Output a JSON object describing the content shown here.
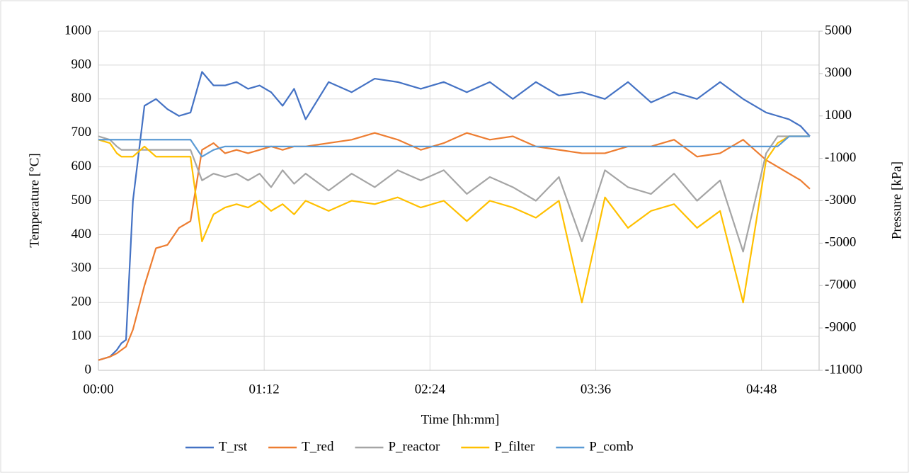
{
  "chart_data": {
    "type": "line",
    "x_label": "Time [hh:mm]",
    "y_label": "Temperature [°C]",
    "y2_label": "Pressure [kPa]",
    "xlim": [
      0,
      313
    ],
    "xticks": [
      {
        "value": 0,
        "label": "00:00"
      },
      {
        "value": 72,
        "label": "01:12"
      },
      {
        "value": 144,
        "label": "02:24"
      },
      {
        "value": 216,
        "label": "03:36"
      },
      {
        "value": 288,
        "label": "04:48"
      }
    ],
    "ylim": [
      0,
      1000
    ],
    "yticks": [
      0,
      100,
      200,
      300,
      400,
      500,
      600,
      700,
      800,
      900,
      1000
    ],
    "y2lim": [
      -11000,
      5000
    ],
    "y2ticks": [
      -11000,
      -9000,
      -7000,
      -5000,
      -3000,
      -1000,
      1000,
      3000,
      5000
    ],
    "grid": true,
    "legend": "bottom",
    "x": [
      0,
      5,
      8,
      10,
      12,
      15,
      20,
      25,
      30,
      35,
      40,
      45,
      50,
      55,
      60,
      65,
      70,
      75,
      80,
      85,
      90,
      100,
      110,
      120,
      130,
      140,
      150,
      160,
      170,
      180,
      190,
      200,
      210,
      220,
      230,
      240,
      250,
      260,
      270,
      280,
      290,
      295,
      300,
      305,
      309
    ],
    "series": [
      {
        "name": "T_rst",
        "color": "#4472c4",
        "values": [
          30,
          40,
          60,
          80,
          90,
          500,
          780,
          800,
          770,
          750,
          760,
          880,
          840,
          840,
          850,
          830,
          840,
          820,
          780,
          830,
          740,
          850,
          820,
          860,
          850,
          830,
          850,
          820,
          850,
          800,
          850,
          810,
          820,
          800,
          850,
          790,
          820,
          800,
          850,
          800,
          760,
          750,
          740,
          720,
          690
        ]
      },
      {
        "name": "T_red",
        "color": "#ed7d31",
        "values": [
          30,
          40,
          50,
          60,
          70,
          120,
          250,
          360,
          370,
          420,
          440,
          650,
          670,
          640,
          650,
          640,
          650,
          660,
          650,
          660,
          660,
          670,
          680,
          700,
          680,
          650,
          670,
          700,
          680,
          690,
          660,
          650,
          640,
          640,
          660,
          660,
          680,
          630,
          640,
          680,
          620,
          600,
          580,
          560,
          535
        ]
      },
      {
        "name": "P_reactor",
        "color": "#a5a5a5",
        "axis": "y2",
        "values": [
          40,
          -120,
          -440,
          -600,
          -600,
          -600,
          -600,
          -600,
          -600,
          -600,
          -600,
          -2040,
          -1720,
          -1880,
          -1720,
          -2040,
          -1720,
          -2360,
          -1560,
          -2200,
          -1720,
          -2520,
          -1720,
          -2360,
          -1560,
          -2040,
          -1560,
          -2680,
          -1880,
          -2360,
          -3000,
          -1880,
          -4920,
          -1560,
          -2360,
          -2680,
          -1720,
          -3000,
          -2040,
          -5400,
          -760,
          40,
          40,
          40,
          40
        ]
      },
      {
        "name": "P_filter",
        "color": "#ffc000",
        "axis": "y2",
        "values": [
          -120,
          -280,
          -760,
          -920,
          -920,
          -920,
          -440,
          -920,
          -920,
          -920,
          -920,
          -4920,
          -3640,
          -3320,
          -3160,
          -3320,
          -3000,
          -3480,
          -3160,
          -3640,
          -3000,
          -3480,
          -3000,
          -3160,
          -2840,
          -3320,
          -3000,
          -3960,
          -3000,
          -3320,
          -3800,
          -3000,
          -7800,
          -2840,
          -4280,
          -3480,
          -3160,
          -4280,
          -3480,
          -7800,
          -1080,
          -280,
          40,
          40,
          40
        ]
      },
      {
        "name": "P_comb",
        "color": "#5b9bd5",
        "axis": "y2",
        "values": [
          -120,
          -120,
          -120,
          -120,
          -120,
          -120,
          -120,
          -120,
          -120,
          -120,
          -120,
          -920,
          -600,
          -440,
          -440,
          -440,
          -440,
          -440,
          -440,
          -440,
          -440,
          -440,
          -440,
          -440,
          -440,
          -440,
          -440,
          -440,
          -440,
          -440,
          -440,
          -440,
          -440,
          -440,
          -440,
          -440,
          -440,
          -440,
          -440,
          -440,
          -440,
          -440,
          40,
          40,
          40
        ]
      }
    ]
  }
}
